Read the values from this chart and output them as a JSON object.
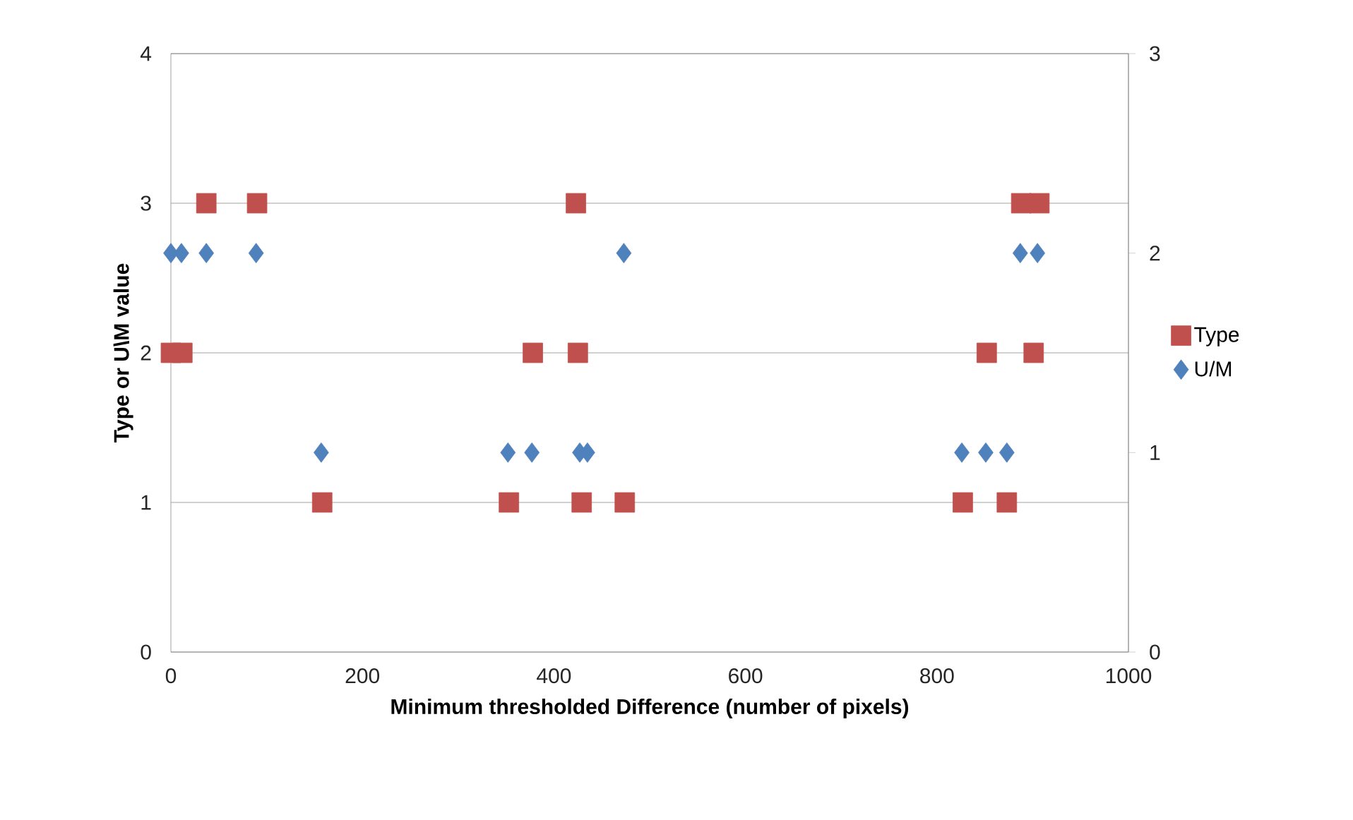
{
  "chart_data": {
    "type": "scatter",
    "xlabel": "Minimum thresholded Difference (number of pixels)",
    "ylabel": "Type or U\\M value",
    "xlim": [
      0,
      1000
    ],
    "xticks": [
      0,
      200,
      400,
      600,
      800,
      1000
    ],
    "ylim": [
      0,
      4
    ],
    "yticks": [
      0,
      1,
      2,
      3,
      4
    ],
    "y2lim": [
      0,
      3
    ],
    "y2ticks": [
      0,
      1,
      2,
      3
    ],
    "grid": "y",
    "legend": "right",
    "series": [
      {
        "name": "Type",
        "color": "#c0504d",
        "marker": "square",
        "x": [
          0,
          12,
          37,
          90,
          423,
          378,
          425,
          158,
          353,
          429,
          474,
          888,
          907,
          852,
          901,
          827,
          873
        ],
        "values": [
          2,
          2,
          3,
          3,
          3,
          2,
          2,
          1,
          1,
          1,
          1,
          3,
          3,
          2,
          2,
          1,
          1
        ]
      },
      {
        "name": "U/M",
        "color": "#4f81bd",
        "marker": "diamond",
        "axis": "y2",
        "x": [
          0,
          11,
          37,
          89,
          473,
          887,
          905,
          157,
          352,
          377,
          427,
          435,
          826,
          851,
          873
        ],
        "values": [
          2,
          2,
          2,
          2,
          2,
          2,
          2,
          1,
          1,
          1,
          1,
          1,
          1,
          1,
          1
        ]
      }
    ]
  }
}
